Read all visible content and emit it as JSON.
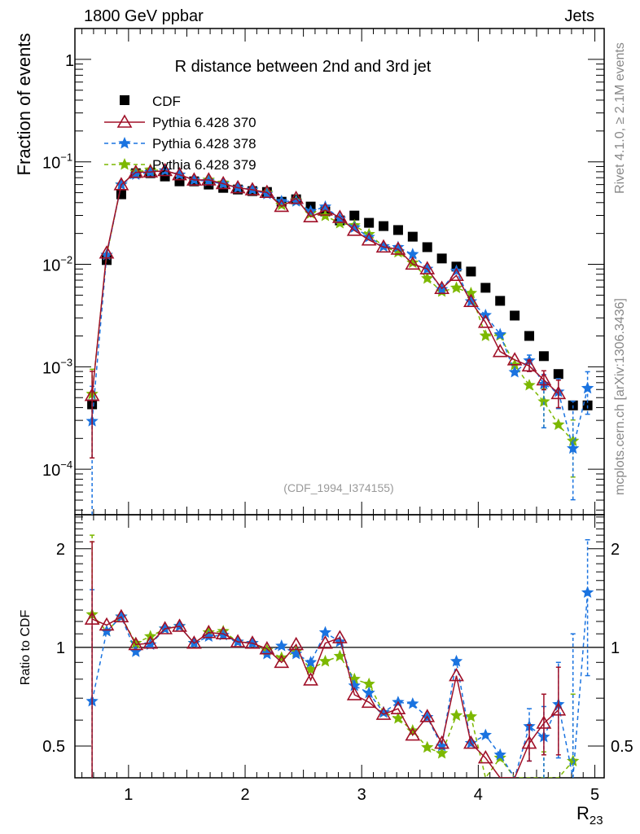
{
  "header": {
    "left": "1800 GeV ppbar",
    "right": "Jets"
  },
  "side_text": {
    "rivet": "Rivet 4.1.0, ≥ 2.1M events",
    "mcplots": "mcplots.cern.ch [arXiv:1306.3436]"
  },
  "colors": {
    "cdf": "#000000",
    "p370": "#a01028",
    "p378": "#1a73e0",
    "p379": "#7cb800"
  },
  "chart_data": {
    "type": "line",
    "title": "R distance between 2nd and 3rd jet",
    "analysis_id": "(CDF_1994_I374155)",
    "xlabel": "R",
    "xlabel_sub": "23",
    "ylabel": "Fraction of events",
    "ratio_ylabel": "Ratio to CDF",
    "xlim": [
      0.54,
      5.08
    ],
    "ylim": [
      3.6e-05,
      2.0
    ],
    "yscale": "log",
    "ratio_ylim": [
      0.4,
      2.54
    ],
    "ratio_yscale": "log",
    "x_ticks": [
      "1",
      "2",
      "3",
      "4",
      "5"
    ],
    "y_ticks": [
      {
        "base": "1",
        "exp": ""
      },
      {
        "base": "10",
        "exp": "−1"
      },
      {
        "base": "10",
        "exp": "−2"
      },
      {
        "base": "10",
        "exp": "−3"
      },
      {
        "base": "10",
        "exp": "−4"
      }
    ],
    "ratio_ticks": [
      "2",
      "1",
      "0.5"
    ],
    "legend_position": "top-left",
    "x": [
      0.6875,
      0.8125,
      0.9375,
      1.0625,
      1.1875,
      1.3125,
      1.4375,
      1.5625,
      1.6875,
      1.8125,
      1.9375,
      2.0625,
      2.1875,
      2.3125,
      2.4375,
      2.5625,
      2.6875,
      2.8125,
      2.9375,
      3.0625,
      3.1875,
      3.3125,
      3.4375,
      3.5625,
      3.6875,
      3.8125,
      3.9375,
      4.0625,
      4.1875,
      4.3125,
      4.4375,
      4.5625,
      4.6875,
      4.8125,
      4.9375
    ],
    "reference": {
      "name": "CDF",
      "values": [
        0.00043,
        0.011,
        0.0482,
        0.0774,
        0.0774,
        0.072,
        0.0645,
        0.0645,
        0.06,
        0.0557,
        0.0537,
        0.0518,
        0.0508,
        0.0408,
        0.0431,
        0.0366,
        0.0328,
        0.0268,
        0.0299,
        0.0254,
        0.0236,
        0.0216,
        0.0186,
        0.0147,
        0.0114,
        0.0095,
        0.0085,
        0.0059,
        0.0044,
        0.00316,
        0.002,
        0.00127,
        0.00085,
        0.00042,
        0.00042
      ]
    },
    "series": [
      {
        "name": "Pythia 6.428 370",
        "marker": "open-triangle",
        "line": "solid",
        "ratio_to_cdf": [
          1.22,
          1.17,
          1.24,
          1.02,
          1.03,
          1.14,
          1.16,
          1.03,
          1.11,
          1.1,
          1.04,
          1.03,
          0.99,
          0.9,
          1.02,
          0.795,
          1.03,
          1.07,
          0.717,
          0.68,
          0.625,
          0.65,
          0.54,
          0.615,
          0.51,
          0.82,
          0.51,
          0.46,
          0.32,
          0.37,
          0.51,
          0.587,
          0.644,
          null,
          null
        ],
        "ratio_err": {
          "0": [
            0.3,
            2.1
          ],
          "30": [
            0.45,
            0.58
          ],
          "31": [
            0.47,
            0.72
          ],
          "32": [
            0.47,
            0.87
          ]
        }
      },
      {
        "name": "Pythia 6.428 378",
        "marker": "star",
        "line": "dashed",
        "ratio_to_cdf": [
          0.685,
          1.12,
          1.24,
          0.97,
          1.02,
          1.14,
          1.16,
          1.03,
          1.08,
          1.09,
          1.04,
          1.03,
          0.955,
          1.01,
          0.955,
          0.9,
          1.11,
          1.04,
          0.764,
          0.726,
          0.633,
          0.68,
          0.673,
          0.612,
          0.5,
          0.907,
          0.51,
          0.54,
          0.47,
          0.28,
          0.574,
          0.533,
          0.67,
          0.38,
          1.47
        ],
        "ratio_err": {
          "0": [
            0.05,
            1.5
          ],
          "30": [
            0.45,
            0.65
          ],
          "31": [
            0.2,
            0.66
          ],
          "32": [
            0.46,
            0.9
          ],
          "33": [
            0.12,
            1.1
          ],
          "34": [
            0.82,
            2.13
          ]
        }
      },
      {
        "name": "Pythia 6.428 379",
        "marker": "star",
        "line": "dashed",
        "ratio_to_cdf": [
          1.26,
          1.12,
          1.24,
          1.03,
          1.08,
          1.14,
          1.16,
          1.03,
          1.11,
          1.12,
          1.04,
          1.03,
          0.98,
          0.93,
          0.97,
          0.857,
          0.907,
          0.94,
          0.8,
          0.773,
          0.633,
          0.607,
          0.557,
          0.495,
          0.475,
          0.62,
          0.615,
          0.34,
          0.46,
          0.33,
          0.33,
          0.36,
          0.32,
          0.45,
          null
        ],
        "ratio_err": {
          "0": [
            0.3,
            2.2
          ],
          "31": [
            0.2,
            0.48
          ],
          "33": [
            0.2,
            0.72
          ]
        }
      }
    ]
  }
}
